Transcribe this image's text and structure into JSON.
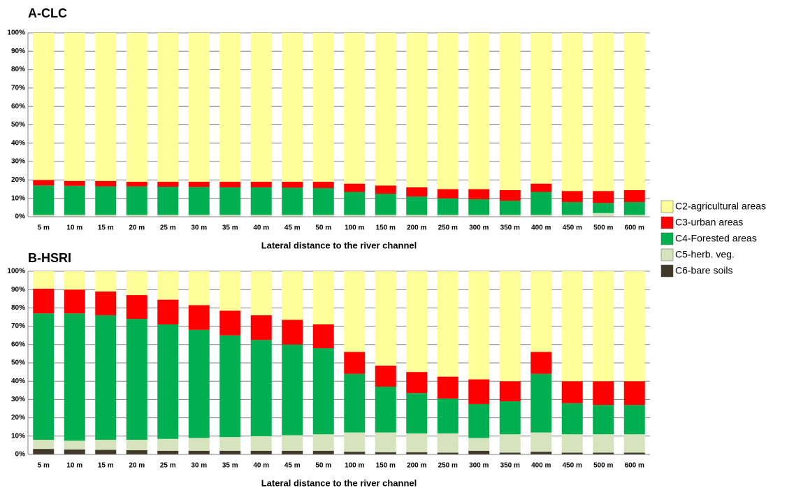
{
  "chart_data": [
    {
      "type": "stacked_bar",
      "title": "A-CLC",
      "x_label": "Lateral distance to the river channel",
      "categories": [
        "5 m",
        "10 m",
        "15 m",
        "20 m",
        "25 m",
        "30 m",
        "35 m",
        "40 m",
        "45 m",
        "50 m",
        "100 m",
        "150 m",
        "200 m",
        "250 m",
        "300 m",
        "350 m",
        "400 m",
        "450 m",
        "500 m",
        "600 m"
      ],
      "series": [
        {
          "name": "C6-bare soils",
          "color": "#403828",
          "values": [
            0,
            0,
            0,
            0,
            0,
            0,
            0,
            0,
            0,
            0,
            0,
            0,
            0,
            0,
            0,
            0,
            0,
            0,
            0,
            0
          ]
        },
        {
          "name": "C5-herb. veg.",
          "color": "#d6e3bc",
          "values": [
            1,
            1,
            1,
            1,
            1,
            1,
            1,
            1,
            1,
            1,
            1,
            1,
            1,
            1,
            1,
            1,
            1,
            1,
            2,
            1
          ]
        },
        {
          "name": "C4-Forested areas",
          "color": "#00b050",
          "values": [
            16,
            15.8,
            15.5,
            15.5,
            15.3,
            15.2,
            15,
            15,
            14.8,
            14.6,
            12.5,
            11.5,
            10,
            9,
            8.5,
            7.7,
            12.5,
            7,
            5.5,
            7
          ]
        },
        {
          "name": "C3-urban areas",
          "color": "#ff0000",
          "values": [
            3,
            2.7,
            3,
            2.5,
            2.7,
            2.8,
            3,
            3,
            3.2,
            3.4,
            4.5,
            4.5,
            5,
            5,
            5.5,
            5.8,
            4.5,
            6,
            6.5,
            6.5
          ]
        },
        {
          "name": "C2-agricultural areas",
          "color": "#ffff99",
          "values": [
            80,
            80.5,
            80.5,
            81,
            81,
            81,
            81,
            81,
            81,
            81,
            82,
            83,
            84,
            85,
            85,
            85.5,
            82,
            86,
            86,
            85.5
          ]
        }
      ],
      "ylim": [
        0,
        100
      ],
      "yticks": [
        {
          "value": 0,
          "label": "0%"
        },
        {
          "value": 10,
          "label": "10%"
        },
        {
          "value": 20,
          "label": "20%"
        },
        {
          "value": 30,
          "label": "30%"
        },
        {
          "value": 40,
          "label": "40%"
        },
        {
          "value": 50,
          "label": "50%"
        },
        {
          "value": 60,
          "label": "60%"
        },
        {
          "value": 70,
          "label": "70%"
        },
        {
          "value": 80,
          "label": "80%"
        },
        {
          "value": 90,
          "label": "90%"
        },
        {
          "value": 100,
          "label": "100%"
        }
      ],
      "grid": true
    },
    {
      "type": "stacked_bar",
      "title": "B-HSRI",
      "x_label": "Lateral distance to the river channel",
      "categories": [
        "5 m",
        "10 m",
        "15 m",
        "20 m",
        "25 m",
        "30 m",
        "35 m",
        "40 m",
        "45 m",
        "50 m",
        "100 m",
        "150 m",
        "200 m",
        "250 m",
        "300 m",
        "350 m",
        "400 m",
        "450 m",
        "500 m",
        "600 m"
      ],
      "series": [
        {
          "values": [
            3,
            2.7,
            2.5,
            2.3,
            2,
            2,
            2,
            2,
            2,
            2,
            1.5,
            1.2,
            1.2,
            1,
            2,
            1,
            1.5,
            1,
            1,
            1
          ]
        },
        {
          "values": [
            5,
            4.8,
            5.5,
            5.7,
            6.5,
            7,
            7.5,
            8,
            8.5,
            9,
            10.5,
            10.8,
            10.3,
            10.5,
            7,
            10,
            10.5,
            10,
            10,
            10
          ]
        },
        {
          "values": [
            69,
            69.5,
            68,
            66,
            62.5,
            59,
            55.5,
            52.5,
            49.5,
            47,
            32,
            25,
            22,
            19,
            18.5,
            18,
            32,
            17,
            16,
            16
          ]
        },
        {
          "values": [
            13.5,
            13,
            13,
            13,
            13.5,
            13.5,
            13.5,
            13.5,
            13.5,
            13,
            12,
            11.5,
            11.5,
            12,
            13.5,
            11,
            12,
            12,
            13,
            13
          ]
        },
        {
          "values": [
            9.5,
            10,
            11,
            13,
            15.5,
            18.5,
            21.5,
            24,
            26.5,
            29,
            44,
            51.5,
            55,
            57.5,
            59,
            60,
            44,
            60,
            60,
            60
          ]
        }
      ],
      "ylim": [
        0,
        100
      ],
      "yticks": [
        {
          "value": 0,
          "label": "0%"
        },
        {
          "value": 10,
          "label": "10%"
        },
        {
          "value": 20,
          "label": "20%"
        },
        {
          "value": 30,
          "label": "30%"
        },
        {
          "value": 40,
          "label": "40%"
        },
        {
          "value": 50,
          "label": "50%"
        },
        {
          "value": 60,
          "label": "60%"
        },
        {
          "value": 70,
          "label": "70%"
        },
        {
          "value": 80,
          "label": "80%"
        },
        {
          "value": 90,
          "label": "90%"
        },
        {
          "value": 100,
          "label": "100%"
        }
      ],
      "grid": true
    }
  ]
}
